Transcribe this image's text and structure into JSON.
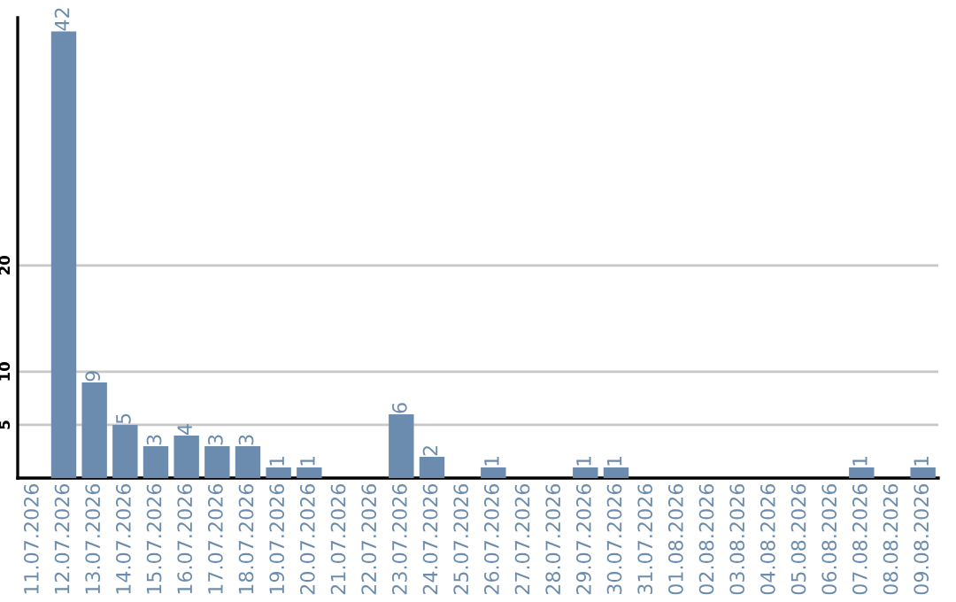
{
  "chart_data": {
    "type": "bar",
    "categories": [
      "11.07.2026",
      "12.07.2026",
      "13.07.2026",
      "14.07.2026",
      "15.07.2026",
      "16.07.2026",
      "17.07.2026",
      "18.07.2026",
      "19.07.2026",
      "20.07.2026",
      "21.07.2026",
      "22.07.2026",
      "23.07.2026",
      "24.07.2026",
      "25.07.2026",
      "26.07.2026",
      "27.07.2026",
      "28.07.2026",
      "29.07.2026",
      "30.07.2026",
      "31.07.2026",
      "01.08.2026",
      "02.08.2026",
      "03.08.2026",
      "04.08.2026",
      "05.08.2026",
      "06.08.2026",
      "07.08.2026",
      "08.08.2026",
      "09.08.2026"
    ],
    "values": [
      null,
      42,
      9,
      5,
      3,
      4,
      3,
      3,
      1,
      1,
      null,
      null,
      6,
      2,
      null,
      1,
      null,
      null,
      1,
      1,
      null,
      null,
      null,
      null,
      null,
      null,
      null,
      1,
      null,
      1
    ],
    "color": "#6b8cae",
    "ylim": [
      0,
      43.3
    ],
    "yticks": [
      5,
      10,
      20
    ],
    "grid": "y",
    "data_labels": true,
    "legend": false
  }
}
